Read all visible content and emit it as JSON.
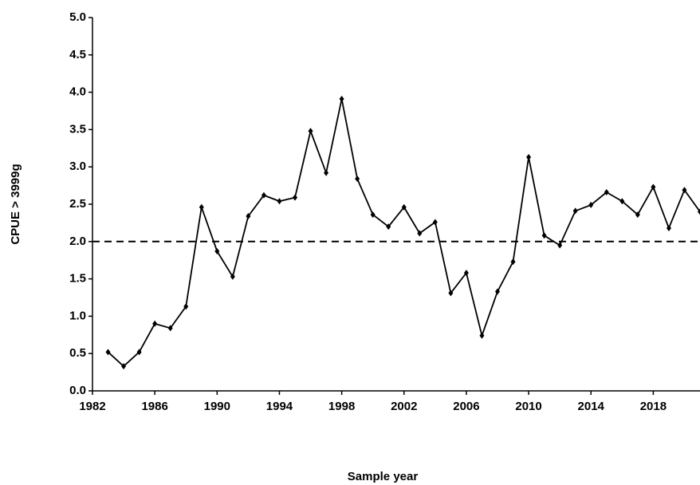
{
  "chart_data": {
    "type": "line",
    "x_label": "Sample year",
    "y_label": "CPUE > 3999g",
    "x": [
      1983,
      1984,
      1985,
      1986,
      1987,
      1988,
      1989,
      1990,
      1991,
      1992,
      1993,
      1994,
      1995,
      1996,
      1997,
      1998,
      1999,
      2000,
      2001,
      2002,
      2003,
      2004,
      2005,
      2006,
      2007,
      2008,
      2009,
      2010,
      2011,
      2012,
      2013,
      2014,
      2015,
      2016,
      2017,
      2018,
      2019,
      2020,
      2021
    ],
    "series": [
      {
        "name": "CPUE",
        "color": "#000000",
        "values": [
          0.52,
          0.33,
          0.52,
          0.9,
          0.84,
          1.13,
          2.46,
          1.87,
          1.53,
          2.34,
          2.62,
          2.54,
          2.59,
          3.48,
          2.92,
          3.91,
          2.84,
          2.36,
          2.2,
          2.46,
          2.11,
          2.26,
          1.31,
          1.58,
          0.74,
          1.33,
          1.73,
          3.13,
          2.08,
          1.95,
          2.41,
          2.49,
          2.66,
          2.54,
          2.36,
          2.73,
          2.18,
          2.69,
          2.4
        ]
      }
    ],
    "reference_line": 2.0,
    "xlim": [
      1982,
      2021
    ],
    "xticks": [
      1982,
      1986,
      1990,
      1994,
      1998,
      2002,
      2006,
      2010,
      2014,
      2018
    ],
    "ylim": [
      0,
      5
    ],
    "yticks": [
      {
        "value": 0,
        "label": "0.0"
      },
      0.5,
      {
        "value": 1,
        "label": "1.0"
      },
      1.5,
      {
        "value": 2,
        "label": "2.0"
      },
      2.5,
      {
        "value": 3,
        "label": "3.0"
      },
      3.5,
      {
        "value": 4,
        "label": "4.0"
      },
      4.5,
      {
        "value": 5,
        "label": "5.0"
      }
    ]
  }
}
